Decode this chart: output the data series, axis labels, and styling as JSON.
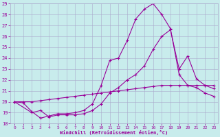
{
  "xlabel": "Windchill (Refroidissement éolien,°C)",
  "bg_color": "#c8ecec",
  "line_color": "#990099",
  "grid_color": "#aaaacc",
  "xlim": [
    -0.5,
    23.5
  ],
  "ylim": [
    18,
    29
  ],
  "xticks": [
    0,
    1,
    2,
    3,
    4,
    5,
    6,
    7,
    8,
    9,
    10,
    11,
    12,
    13,
    14,
    15,
    16,
    17,
    18,
    19,
    20,
    21,
    22,
    23
  ],
  "yticks": [
    18,
    19,
    20,
    21,
    22,
    23,
    24,
    25,
    26,
    27,
    28,
    29
  ],
  "series1_x": [
    0,
    1,
    2,
    3,
    4,
    5,
    6,
    7,
    8,
    9,
    10,
    11,
    12,
    13,
    14,
    15,
    16,
    17,
    18,
    19,
    20,
    21,
    22,
    23
  ],
  "series1_y": [
    20.0,
    19.9,
    19.1,
    18.5,
    18.7,
    18.9,
    18.9,
    19.0,
    19.2,
    19.8,
    21.5,
    23.8,
    24.0,
    25.6,
    27.6,
    28.5,
    29.0,
    28.0,
    26.7,
    22.5,
    21.5,
    21.3,
    20.8,
    20.5
  ],
  "series2_x": [
    0,
    2,
    3,
    4,
    5,
    6,
    7,
    8,
    9,
    10,
    11,
    12,
    13,
    14,
    15,
    16,
    17,
    18,
    19,
    20,
    21,
    22,
    23
  ],
  "series2_y": [
    20.0,
    19.0,
    19.2,
    18.6,
    18.8,
    18.8,
    18.8,
    18.9,
    19.2,
    19.8,
    20.8,
    21.3,
    22.0,
    22.5,
    23.3,
    24.8,
    26.0,
    26.6,
    23.0,
    24.2,
    22.1,
    21.5,
    21.2
  ],
  "series3_x": [
    0,
    1,
    2,
    3,
    4,
    5,
    6,
    7,
    8,
    9,
    10,
    11,
    12,
    13,
    14,
    15,
    16,
    17,
    18,
    19,
    20,
    21,
    22,
    23
  ],
  "series3_y": [
    20.0,
    20.0,
    20.0,
    20.1,
    20.2,
    20.3,
    20.4,
    20.5,
    20.6,
    20.7,
    20.8,
    20.9,
    21.0,
    21.1,
    21.2,
    21.3,
    21.4,
    21.5,
    21.5,
    21.5,
    21.5,
    21.5,
    21.5,
    21.5
  ]
}
